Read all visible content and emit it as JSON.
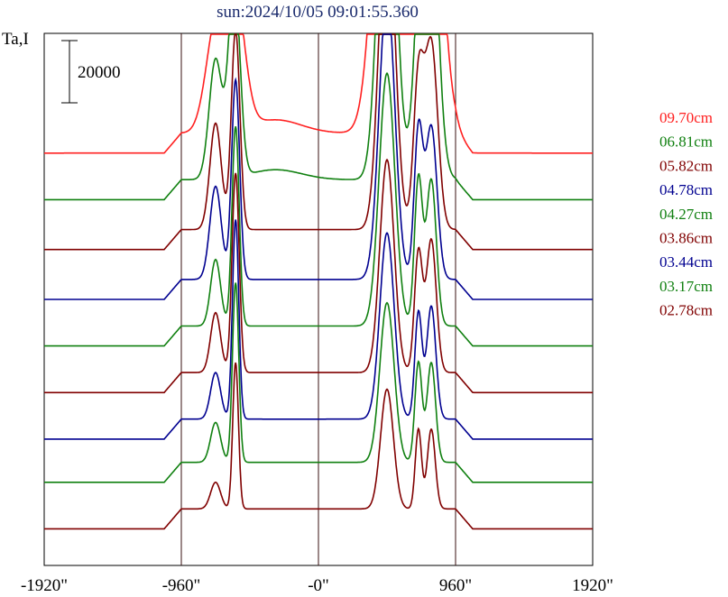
{
  "chart_data": {
    "type": "line",
    "title": "sun:2024/10/05 09:01:55.360",
    "ylabel": "Ta,I",
    "scale_bar_label": "20000",
    "scale_bar_value": 20000,
    "x_ticks": [
      "-1920\"",
      "-960\"",
      "-0\"",
      "960\"",
      "1920\""
    ],
    "x_tick_values": [
      -1920,
      -960,
      0,
      960,
      1920
    ],
    "xlim": [
      -1920,
      1920
    ],
    "vertical_gridlines_at": [
      -960,
      0,
      960
    ],
    "grid": false,
    "legend_position": "right",
    "series": [
      {
        "name": "09.70cm",
        "color": "#ff2020",
        "offset": 62000,
        "peaks": [
          [
            -720,
            70,
            15000
          ],
          [
            -590,
            70,
            21000
          ],
          [
            -300,
            180,
            2000
          ],
          [
            480,
            85,
            58000
          ],
          [
            760,
            85,
            61000
          ]
        ]
      },
      {
        "name": "06.81cm",
        "color": "#108010",
        "offset": 55000,
        "peaks": [
          [
            -720,
            45,
            18000
          ],
          [
            -590,
            40,
            30000
          ],
          [
            -300,
            180,
            1500
          ],
          [
            480,
            60,
            58000
          ],
          [
            760,
            60,
            61000
          ]
        ]
      },
      {
        "name": "05.82cm",
        "color": "#800000",
        "offset": 47500,
        "peaks": [
          [
            -720,
            40,
            16000
          ],
          [
            -580,
            30,
            30000
          ],
          [
            480,
            55,
            50000
          ],
          [
            700,
            35,
            22000
          ],
          [
            790,
            45,
            28000
          ]
        ]
      },
      {
        "name": "04.78cm",
        "color": "#000090",
        "offset": 40000,
        "peaks": [
          [
            -720,
            40,
            14000
          ],
          [
            -580,
            28,
            30000
          ],
          [
            480,
            55,
            43000
          ],
          [
            700,
            30,
            22000
          ],
          [
            790,
            40,
            23000
          ]
        ]
      },
      {
        "name": "04.27cm",
        "color": "#108010",
        "offset": 33000,
        "peaks": [
          [
            -720,
            35,
            10000
          ],
          [
            -580,
            25,
            30000
          ],
          [
            480,
            55,
            38000
          ],
          [
            700,
            28,
            22000
          ],
          [
            790,
            35,
            22000
          ]
        ]
      },
      {
        "name": "03.86cm",
        "color": "#800000",
        "offset": 26000,
        "peaks": [
          [
            -720,
            35,
            9000
          ],
          [
            -580,
            25,
            30000
          ],
          [
            480,
            50,
            32000
          ],
          [
            700,
            28,
            18000
          ],
          [
            790,
            35,
            20000
          ]
        ]
      },
      {
        "name": "03.44cm",
        "color": "#000090",
        "offset": 19000,
        "peaks": [
          [
            -720,
            35,
            7000
          ],
          [
            -580,
            22,
            30000
          ],
          [
            480,
            50,
            28000
          ],
          [
            700,
            25,
            16000
          ],
          [
            790,
            32,
            17000
          ]
        ]
      },
      {
        "name": "03.17cm",
        "color": "#108010",
        "offset": 12500,
        "peaks": [
          [
            -720,
            35,
            6000
          ],
          [
            -580,
            22,
            27000
          ],
          [
            480,
            50,
            24000
          ],
          [
            700,
            25,
            15000
          ],
          [
            790,
            30,
            15000
          ]
        ]
      },
      {
        "name": "02.78cm",
        "color": "#800000",
        "offset": 5500,
        "peaks": [
          [
            -720,
            35,
            4000
          ],
          [
            -580,
            20,
            22000
          ],
          [
            480,
            45,
            18000
          ],
          [
            700,
            22,
            12000
          ],
          [
            790,
            28,
            12000
          ]
        ]
      }
    ],
    "disk_level": 3000,
    "ylim": [
      0,
      80000
    ]
  }
}
